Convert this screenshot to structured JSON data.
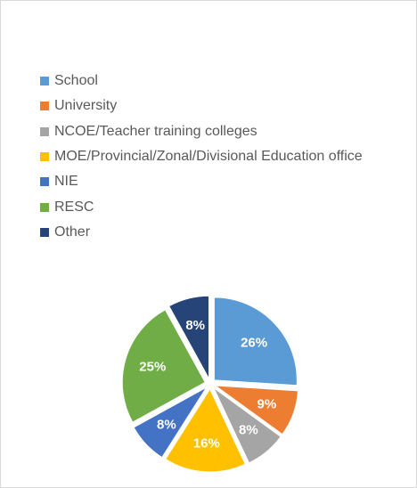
{
  "chart_data": {
    "type": "pie",
    "title": "",
    "categories": [
      "School",
      "University",
      "NCOE/Teacher training colleges",
      "MOE/Provincial/Zonal/Divisional Education office",
      "NIE",
      "RESC",
      "Other"
    ],
    "values": [
      26,
      9,
      8,
      16,
      8,
      25,
      8
    ],
    "data_labels": [
      "26%",
      "9%",
      "8%",
      "16%",
      "8%",
      "25%",
      "8%"
    ],
    "colors": [
      "#5b9bd5",
      "#ed7d31",
      "#a5a5a5",
      "#ffc000",
      "#4472c4",
      "#70ad47",
      "#264478"
    ],
    "legend_position": "top-left",
    "exploded": true
  }
}
